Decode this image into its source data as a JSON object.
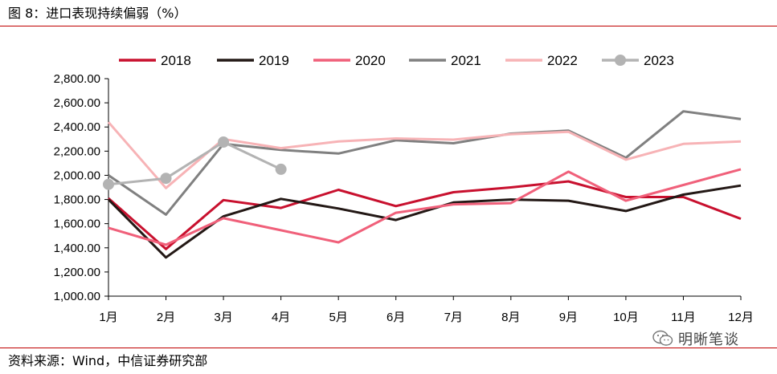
{
  "figure": {
    "title": "图 8：进口表现持续偏弱（%）",
    "source": "资料来源：Wind，中信证券研究部",
    "watermark": "明晰笔谈",
    "rule_color": "#c00000"
  },
  "chart_data": {
    "type": "line",
    "title": "进口表现持续偏弱（%）",
    "xlabel": "",
    "ylabel": "",
    "categories": [
      "1月",
      "2月",
      "3月",
      "4月",
      "5月",
      "6月",
      "7月",
      "8月",
      "9月",
      "10月",
      "11月",
      "12月"
    ],
    "ylim": [
      1000,
      2800
    ],
    "yticks": [
      1000,
      1200,
      1400,
      1600,
      1800,
      2000,
      2200,
      2400,
      2600,
      2800
    ],
    "ytick_labels": [
      "1,000.00",
      "1,200.00",
      "1,400.00",
      "1,600.00",
      "1,800.00",
      "2,000.00",
      "2,200.00",
      "2,400.00",
      "2,600.00",
      "2,800.00"
    ],
    "grid": false,
    "legend_position": "top",
    "series": [
      {
        "name": "2018",
        "color": "#c8102e",
        "markers": false,
        "values": [
          1810,
          1390,
          1795,
          1730,
          1880,
          1745,
          1860,
          1900,
          1950,
          1820,
          1820,
          1640
        ]
      },
      {
        "name": "2019",
        "color": "#231815",
        "markers": false,
        "values": [
          1800,
          1320,
          1660,
          1805,
          1725,
          1630,
          1775,
          1800,
          1790,
          1705,
          1840,
          1915
        ]
      },
      {
        "name": "2020",
        "color": "#f0607a",
        "markers": false,
        "values": [
          1565,
          1425,
          1645,
          1545,
          1445,
          1690,
          1760,
          1770,
          2030,
          1790,
          1920,
          2050
        ]
      },
      {
        "name": "2021",
        "color": "#808080",
        "markers": false,
        "values": [
          2000,
          1675,
          2260,
          2210,
          2180,
          2290,
          2265,
          2345,
          2370,
          2145,
          2530,
          2465
        ]
      },
      {
        "name": "2022",
        "color": "#f7b3b6",
        "markers": false,
        "values": [
          2440,
          1895,
          2300,
          2225,
          2280,
          2305,
          2295,
          2340,
          2360,
          2130,
          2260,
          2280
        ]
      },
      {
        "name": "2023",
        "color": "#b3b3b3",
        "markers": true,
        "values": [
          1925,
          1975,
          2275,
          2050,
          null,
          null,
          null,
          null,
          null,
          null,
          null,
          null
        ]
      }
    ]
  }
}
